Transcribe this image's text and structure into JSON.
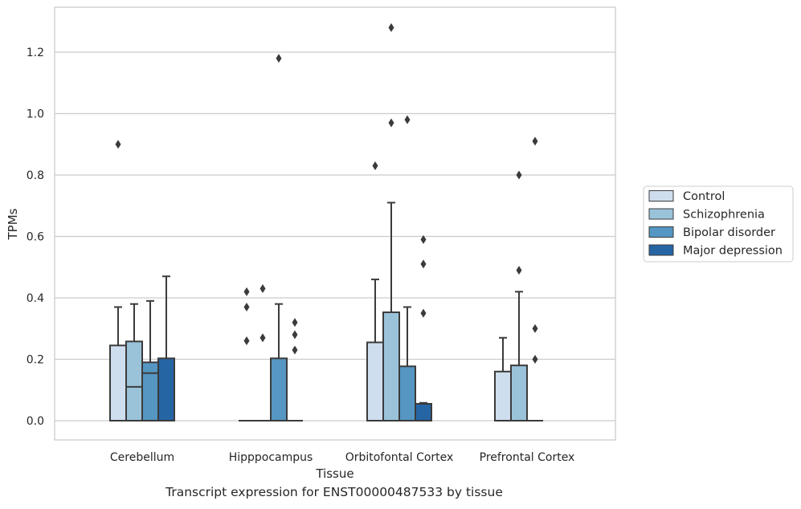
{
  "caption": "Transcript expression for ENST00000487533 by tissue",
  "chart_data": {
    "type": "box",
    "xlabel": "Tissue",
    "ylabel": "TPMs",
    "ylim": [
      -0.06,
      1.35
    ],
    "yticks": [
      0.0,
      0.2,
      0.4,
      0.6,
      0.8,
      1.0,
      1.2
    ],
    "ytick_labels": [
      "0.0",
      "0.2",
      "0.4",
      "0.6",
      "0.8",
      "1.0",
      "1.2"
    ],
    "grid": "horizontal",
    "legend_position": "right",
    "categories": [
      "Cerebellum",
      "Hipppocampus",
      "Orbitofontal Cortex",
      "Prefrontal Cortex"
    ],
    "series": [
      {
        "name": "Control",
        "color": "#cfdeee",
        "boxes": [
          {
            "q1": 0.0,
            "median": 0.0,
            "q3": 0.245,
            "whisker_low": 0.0,
            "whisker_high": 0.37,
            "outliers": [
              0.9
            ]
          },
          {
            "q1": 0.0,
            "median": 0.0,
            "q3": 0.0,
            "whisker_low": 0.0,
            "whisker_high": 0.0,
            "outliers": [
              0.26,
              0.37,
              0.42
            ]
          },
          {
            "q1": 0.0,
            "median": 0.0,
            "q3": 0.255,
            "whisker_low": 0.0,
            "whisker_high": 0.46,
            "outliers": [
              0.83
            ]
          },
          {
            "q1": 0.0,
            "median": 0.0,
            "q3": 0.16,
            "whisker_low": 0.0,
            "whisker_high": 0.27,
            "outliers": []
          }
        ]
      },
      {
        "name": "Schizophrenia",
        "color": "#9ac3da",
        "boxes": [
          {
            "q1": 0.0,
            "median": 0.11,
            "q3": 0.258,
            "whisker_low": 0.0,
            "whisker_high": 0.38,
            "outliers": []
          },
          {
            "q1": 0.0,
            "median": 0.0,
            "q3": 0.0,
            "whisker_low": 0.0,
            "whisker_high": 0.0,
            "outliers": [
              0.27,
              0.43
            ]
          },
          {
            "q1": 0.0,
            "median": 0.0,
            "q3": 0.353,
            "whisker_low": 0.0,
            "whisker_high": 0.71,
            "outliers": [
              0.97,
              1.28
            ]
          },
          {
            "q1": 0.0,
            "median": 0.0,
            "q3": 0.18,
            "whisker_low": 0.0,
            "whisker_high": 0.42,
            "outliers": [
              0.49,
              0.8
            ]
          }
        ]
      },
      {
        "name": "Bipolar disorder",
        "color": "#5596c2",
        "boxes": [
          {
            "q1": 0.0,
            "median": 0.155,
            "q3": 0.19,
            "whisker_low": 0.0,
            "whisker_high": 0.39,
            "outliers": []
          },
          {
            "q1": 0.0,
            "median": 0.0,
            "q3": 0.203,
            "whisker_low": 0.0,
            "whisker_high": 0.38,
            "outliers": [
              1.18
            ]
          },
          {
            "q1": 0.0,
            "median": 0.0,
            "q3": 0.177,
            "whisker_low": 0.0,
            "whisker_high": 0.37,
            "outliers": [
              0.98
            ]
          },
          {
            "q1": 0.0,
            "median": 0.0,
            "q3": 0.0,
            "whisker_low": 0.0,
            "whisker_high": 0.0,
            "outliers": [
              0.2,
              0.3,
              0.91
            ]
          }
        ]
      },
      {
        "name": "Major depression",
        "color": "#2565a4",
        "boxes": [
          {
            "q1": 0.0,
            "median": 0.0,
            "q3": 0.203,
            "whisker_low": 0.0,
            "whisker_high": 0.47,
            "outliers": []
          },
          {
            "q1": 0.0,
            "median": 0.0,
            "q3": 0.0,
            "whisker_low": 0.0,
            "whisker_high": 0.0,
            "outliers": [
              0.23,
              0.28,
              0.32
            ]
          },
          {
            "q1": 0.0,
            "median": 0.0,
            "q3": 0.055,
            "whisker_low": 0.0,
            "whisker_high": 0.058,
            "outliers": [
              0.35,
              0.51,
              0.59
            ]
          },
          null
        ]
      }
    ]
  }
}
